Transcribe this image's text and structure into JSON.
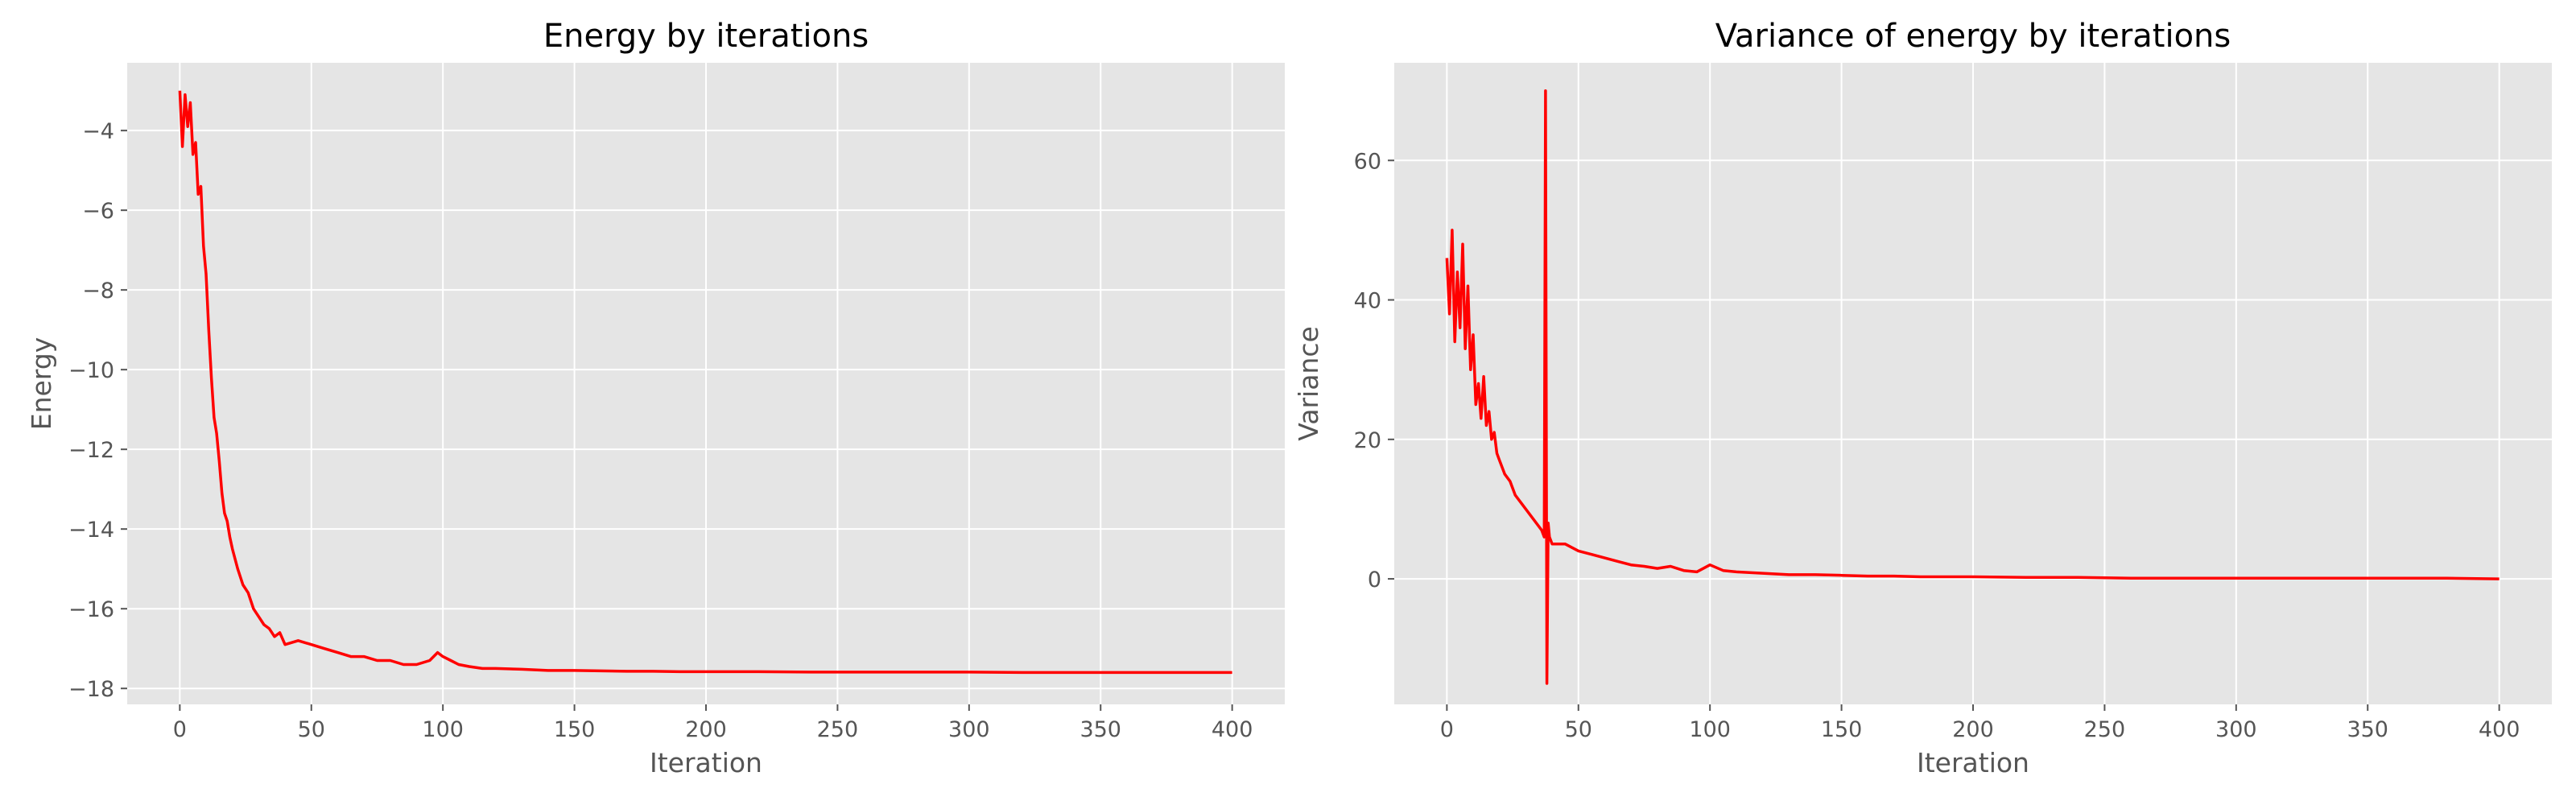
{
  "chart_data": [
    {
      "type": "line",
      "title": "Energy by iterations",
      "xlabel": "Iteration",
      "ylabel": "Energy",
      "xlim": [
        -20,
        420
      ],
      "ylim": [
        -18.4,
        -2.3
      ],
      "xticks": [
        0,
        50,
        100,
        150,
        200,
        250,
        300,
        350,
        400
      ],
      "yticks": [
        -18,
        -16,
        -14,
        -12,
        -10,
        -8,
        -6,
        -4
      ],
      "yticklabels": [
        "−18",
        "−16",
        "−14",
        "−12",
        "−10",
        "−8",
        "−6",
        "−4"
      ],
      "grid": true,
      "color": "#ff0000",
      "series": [
        {
          "x": [
            0,
            1,
            2,
            3,
            4,
            5,
            6,
            7,
            8,
            9,
            10,
            11,
            12,
            13,
            14,
            15,
            16,
            17,
            18,
            19,
            20,
            22,
            24,
            26,
            28,
            30,
            32,
            34,
            36,
            38,
            40,
            45,
            50,
            55,
            60,
            65,
            70,
            75,
            80,
            85,
            90,
            95,
            98,
            100,
            103,
            106,
            110,
            115,
            120,
            130,
            140,
            150,
            160,
            170,
            180,
            190,
            200,
            220,
            240,
            260,
            280,
            300,
            320,
            340,
            360,
            380,
            400
          ],
          "y": [
            -3.0,
            -4.4,
            -3.1,
            -3.9,
            -3.3,
            -4.6,
            -4.3,
            -5.6,
            -5.4,
            -6.9,
            -7.6,
            -9.0,
            -10.2,
            -11.2,
            -11.6,
            -12.3,
            -13.1,
            -13.6,
            -13.8,
            -14.2,
            -14.5,
            -15.0,
            -15.4,
            -15.6,
            -16.0,
            -16.2,
            -16.4,
            -16.5,
            -16.7,
            -16.6,
            -16.9,
            -16.8,
            -16.9,
            -17.0,
            -17.1,
            -17.2,
            -17.2,
            -17.3,
            -17.3,
            -17.4,
            -17.4,
            -17.3,
            -17.1,
            -17.2,
            -17.3,
            -17.4,
            -17.45,
            -17.5,
            -17.5,
            -17.52,
            -17.55,
            -17.55,
            -17.56,
            -17.57,
            -17.57,
            -17.58,
            -17.58,
            -17.58,
            -17.59,
            -17.59,
            -17.59,
            -17.59,
            -17.6,
            -17.6,
            -17.6,
            -17.6,
            -17.6
          ]
        }
      ]
    },
    {
      "type": "line",
      "title": "Variance of energy by iterations",
      "xlabel": "Iteration",
      "ylabel": "Variance",
      "xlim": [
        -20,
        420
      ],
      "ylim": [
        -18,
        74
      ],
      "xticks": [
        0,
        50,
        100,
        150,
        200,
        250,
        300,
        350,
        400
      ],
      "yticks": [
        0,
        20,
        40,
        60
      ],
      "grid": true,
      "color": "#ff0000",
      "series": [
        {
          "x": [
            0,
            1,
            2,
            3,
            4,
            5,
            6,
            7,
            8,
            9,
            10,
            11,
            12,
            13,
            14,
            15,
            16,
            17,
            18,
            19,
            20,
            22,
            24,
            26,
            28,
            30,
            32,
            34,
            36,
            37,
            37.5,
            38,
            38.5,
            39,
            40,
            45,
            50,
            55,
            60,
            65,
            70,
            75,
            80,
            85,
            90,
            95,
            100,
            105,
            110,
            120,
            130,
            140,
            150,
            160,
            170,
            180,
            190,
            200,
            220,
            240,
            260,
            280,
            300,
            320,
            340,
            360,
            380,
            400
          ],
          "y": [
            46,
            38,
            50,
            34,
            44,
            36,
            48,
            33,
            42,
            30,
            35,
            25,
            28,
            23,
            29,
            22,
            24,
            20,
            21,
            18,
            17,
            15,
            14,
            12,
            11,
            10,
            9,
            8,
            7,
            6,
            70,
            -15,
            8,
            6,
            5,
            5,
            4,
            3.5,
            3,
            2.5,
            2,
            1.8,
            1.5,
            1.8,
            1.2,
            1.0,
            2.0,
            1.2,
            1.0,
            0.8,
            0.6,
            0.6,
            0.5,
            0.4,
            0.4,
            0.3,
            0.3,
            0.3,
            0.2,
            0.2,
            0.1,
            0.1,
            0.1,
            0.1,
            0.1,
            0.1,
            0.1,
            0.0
          ]
        }
      ]
    }
  ]
}
